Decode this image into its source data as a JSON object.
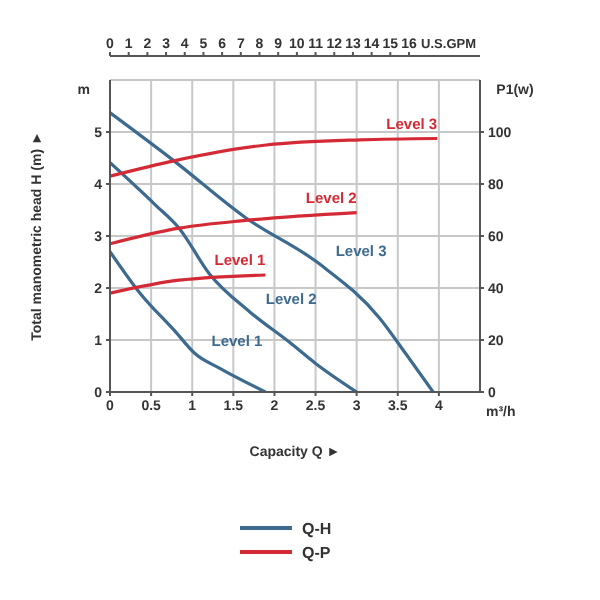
{
  "chart_data": {
    "type": "line",
    "xlabel": "Capacity Q ►",
    "ylabel": "Total manometric head H (m) ►",
    "y2label": "P1(w)",
    "x2label": "U.S.GPM",
    "xlim": [
      0,
      4.5
    ],
    "xticks": [
      0,
      0.5,
      1,
      1.5,
      2,
      2.5,
      3,
      3.5,
      4
    ],
    "x2lim": [
      0,
      19.8
    ],
    "x2ticks": [
      0,
      1,
      2,
      3,
      4,
      5,
      6,
      7,
      8,
      9,
      10,
      11,
      12,
      13,
      14,
      15,
      16
    ],
    "ylim": [
      0,
      6
    ],
    "yticks": [
      0,
      1,
      2,
      3,
      4,
      5
    ],
    "y2lim": [
      0,
      120
    ],
    "y2ticks": [
      0,
      20,
      40,
      60,
      80,
      100
    ],
    "grid": true,
    "marker": "none",
    "series": [
      {
        "name": "Level 3",
        "color": "#3d6a8f",
        "x": [
          0,
          0.79,
          1.65,
          2.55,
          3.28,
          3.6,
          3.93
        ],
        "values": [
          5.37,
          4.43,
          3.35,
          2.46,
          1.42,
          0.73,
          0
        ]
      },
      {
        "name": "Level 2",
        "color": "#3d6a8f",
        "x": [
          0,
          0.55,
          0.84,
          1.21,
          1.7,
          2.18,
          2.5,
          3.0
        ],
        "values": [
          4.41,
          3.6,
          3.15,
          2.27,
          1.54,
          0.96,
          0.55,
          0
        ]
      },
      {
        "name": "Level 1",
        "color": "#3d6a8f",
        "x": [
          0,
          0.35,
          0.79,
          1.04,
          1.33,
          1.89
        ],
        "values": [
          2.7,
          1.93,
          1.17,
          0.73,
          0.46,
          0
        ]
      },
      {
        "name": "Level 3",
        "color": "#d42a35",
        "axis": "y2",
        "x": [
          0,
          0.79,
          1.9,
          3.04,
          3.98
        ],
        "values": [
          83,
          89,
          95,
          97,
          97.5
        ]
      },
      {
        "name": "Level 2",
        "color": "#d42a35",
        "axis": "y2",
        "x": [
          0,
          0.84,
          1.65,
          3.0
        ],
        "values": [
          57,
          63,
          66,
          69
        ]
      },
      {
        "name": "Level 1",
        "color": "#d42a35",
        "axis": "y2",
        "x": [
          0,
          0.84,
          1.89
        ],
        "values": [
          38,
          43,
          45
        ]
      }
    ],
    "annotations": [
      "m",
      "m³/h",
      "Q-H",
      "Q-P"
    ]
  }
}
